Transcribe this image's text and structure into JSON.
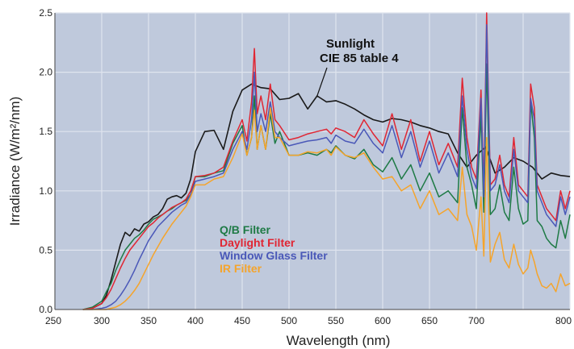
{
  "chart_data": {
    "type": "line",
    "title": "",
    "xlabel": "Wavelength (nm)",
    "ylabel": "Irradiance (W/m²/nm)",
    "xlim": [
      250,
      800
    ],
    "ylim": [
      0,
      2.5
    ],
    "x_ticks": [
      "250",
      "300",
      "350",
      "400",
      "450",
      "500",
      "550",
      "600",
      "650",
      "700",
      "800"
    ],
    "x_tick_values": [
      250,
      300,
      350,
      400,
      450,
      500,
      550,
      600,
      650,
      700,
      800
    ],
    "y_ticks": [
      "0.0",
      "0.5",
      "1.0",
      "1.5",
      "2.0",
      "2.5"
    ],
    "y_tick_values": [
      0,
      0.5,
      1.0,
      1.5,
      2.0,
      2.5
    ],
    "grid": true,
    "legend_position": "lower-left",
    "annotation": {
      "lines": [
        "Sunlight",
        "CIE 85 table 4"
      ],
      "target_x": 530,
      "target_y": 1.8
    },
    "series": [
      {
        "name": "Sunlight CIE 85 table 4",
        "color": "#1a1a1a",
        "x": [
          280,
          290,
          300,
          305,
          310,
          315,
          320,
          325,
          330,
          335,
          340,
          345,
          350,
          355,
          360,
          365,
          370,
          375,
          380,
          385,
          390,
          395,
          400,
          410,
          420,
          430,
          440,
          450,
          460,
          470,
          480,
          490,
          500,
          510,
          520,
          530,
          540,
          550,
          560,
          570,
          580,
          590,
          600,
          610,
          620,
          630,
          640,
          650,
          660,
          670,
          680,
          690,
          700,
          710,
          720,
          730,
          740,
          750,
          760,
          770,
          780,
          790,
          800
        ],
        "y": [
          0,
          0.01,
          0.05,
          0.12,
          0.25,
          0.4,
          0.55,
          0.65,
          0.62,
          0.68,
          0.66,
          0.72,
          0.74,
          0.78,
          0.8,
          0.85,
          0.93,
          0.95,
          0.96,
          0.94,
          0.98,
          1.1,
          1.33,
          1.5,
          1.51,
          1.35,
          1.67,
          1.85,
          1.9,
          1.87,
          1.86,
          1.77,
          1.78,
          1.82,
          1.69,
          1.8,
          1.75,
          1.76,
          1.73,
          1.69,
          1.64,
          1.6,
          1.58,
          1.61,
          1.6,
          1.58,
          1.55,
          1.53,
          1.5,
          1.48,
          1.32,
          1.2,
          1.3,
          1.37,
          1.15,
          1.2,
          1.28,
          1.25,
          1.2,
          1.1,
          1.15,
          1.13,
          1.12
        ]
      },
      {
        "name": "Q/B Filter",
        "color": "#1e7a45",
        "x": [
          280,
          290,
          300,
          305,
          310,
          315,
          320,
          325,
          330,
          335,
          340,
          345,
          350,
          355,
          360,
          365,
          370,
          375,
          380,
          385,
          390,
          395,
          400,
          410,
          420,
          430,
          440,
          450,
          455,
          460,
          463,
          466,
          470,
          475,
          480,
          485,
          490,
          500,
          510,
          520,
          530,
          540,
          545,
          550,
          560,
          570,
          580,
          590,
          600,
          610,
          620,
          630,
          640,
          650,
          660,
          670,
          680,
          685,
          690,
          695,
          700,
          705,
          708,
          711,
          715,
          720,
          725,
          730,
          735,
          740,
          745,
          750,
          755,
          758,
          762,
          765,
          770,
          775,
          780,
          785,
          790,
          795,
          800
        ],
        "y": [
          0,
          0.02,
          0.07,
          0.15,
          0.22,
          0.33,
          0.42,
          0.5,
          0.55,
          0.6,
          0.63,
          0.67,
          0.72,
          0.76,
          0.78,
          0.8,
          0.83,
          0.85,
          0.88,
          0.9,
          0.92,
          0.97,
          1.12,
          1.12,
          1.15,
          1.17,
          1.4,
          1.55,
          1.3,
          1.45,
          1.8,
          1.35,
          1.55,
          1.35,
          1.65,
          1.4,
          1.5,
          1.3,
          1.3,
          1.32,
          1.3,
          1.35,
          1.32,
          1.38,
          1.3,
          1.27,
          1.35,
          1.22,
          1.16,
          1.28,
          1.1,
          1.22,
          1.0,
          1.15,
          0.95,
          1.0,
          0.9,
          1.7,
          1.2,
          1.05,
          0.85,
          1.65,
          0.82,
          2.07,
          0.8,
          0.85,
          1.05,
          0.82,
          0.75,
          1.2,
          0.85,
          0.72,
          0.75,
          1.75,
          1.45,
          0.75,
          0.7,
          0.6,
          0.55,
          0.52,
          0.75,
          0.6,
          0.8
        ]
      },
      {
        "name": "Daylight Filter",
        "color": "#e02633",
        "x": [
          280,
          290,
          300,
          305,
          310,
          315,
          320,
          325,
          330,
          335,
          340,
          345,
          350,
          355,
          360,
          365,
          370,
          375,
          380,
          385,
          390,
          395,
          400,
          410,
          420,
          430,
          440,
          450,
          455,
          460,
          463,
          466,
          470,
          475,
          480,
          485,
          490,
          500,
          510,
          520,
          530,
          540,
          545,
          550,
          560,
          570,
          580,
          590,
          600,
          610,
          620,
          630,
          640,
          650,
          660,
          670,
          680,
          685,
          690,
          695,
          700,
          705,
          708,
          711,
          715,
          720,
          725,
          730,
          735,
          740,
          745,
          750,
          755,
          758,
          762,
          765,
          770,
          775,
          780,
          785,
          790,
          795,
          800
        ],
        "y": [
          0,
          0.01,
          0.05,
          0.1,
          0.17,
          0.26,
          0.35,
          0.43,
          0.5,
          0.55,
          0.6,
          0.65,
          0.7,
          0.73,
          0.77,
          0.8,
          0.83,
          0.86,
          0.88,
          0.9,
          0.93,
          1.0,
          1.12,
          1.13,
          1.15,
          1.2,
          1.42,
          1.6,
          1.42,
          1.75,
          2.2,
          1.65,
          1.8,
          1.6,
          1.9,
          1.6,
          1.55,
          1.43,
          1.45,
          1.48,
          1.5,
          1.52,
          1.48,
          1.53,
          1.5,
          1.45,
          1.6,
          1.48,
          1.38,
          1.65,
          1.35,
          1.6,
          1.25,
          1.5,
          1.22,
          1.4,
          1.2,
          1.95,
          1.45,
          1.2,
          1.1,
          1.85,
          1.0,
          2.5,
          1.05,
          1.1,
          1.3,
          1.05,
          0.95,
          1.45,
          1.05,
          1.0,
          0.95,
          1.9,
          1.7,
          1.05,
          0.95,
          0.85,
          0.8,
          0.75,
          1.0,
          0.85,
          1.0
        ]
      },
      {
        "name": "Window Glass Filter",
        "color": "#4a58b8",
        "x": [
          280,
          290,
          300,
          305,
          310,
          315,
          320,
          325,
          330,
          335,
          340,
          345,
          350,
          355,
          360,
          365,
          370,
          375,
          380,
          385,
          390,
          395,
          400,
          410,
          420,
          430,
          440,
          450,
          455,
          460,
          463,
          466,
          470,
          475,
          480,
          485,
          490,
          500,
          510,
          520,
          530,
          540,
          545,
          550,
          560,
          570,
          580,
          590,
          600,
          610,
          620,
          630,
          640,
          650,
          660,
          670,
          680,
          685,
          690,
          695,
          700,
          705,
          708,
          711,
          715,
          720,
          725,
          730,
          735,
          740,
          745,
          750,
          755,
          758,
          762,
          765,
          770,
          775,
          780,
          785,
          790,
          795,
          800
        ],
        "y": [
          0,
          0,
          0.01,
          0.02,
          0.04,
          0.07,
          0.12,
          0.18,
          0.25,
          0.33,
          0.42,
          0.5,
          0.58,
          0.64,
          0.7,
          0.74,
          0.78,
          0.82,
          0.85,
          0.88,
          0.9,
          0.97,
          1.08,
          1.1,
          1.12,
          1.15,
          1.35,
          1.5,
          1.35,
          1.6,
          2.0,
          1.5,
          1.65,
          1.5,
          1.75,
          1.5,
          1.45,
          1.38,
          1.4,
          1.42,
          1.43,
          1.45,
          1.4,
          1.47,
          1.42,
          1.4,
          1.52,
          1.4,
          1.32,
          1.55,
          1.28,
          1.5,
          1.2,
          1.42,
          1.15,
          1.32,
          1.12,
          1.8,
          1.35,
          1.12,
          1.02,
          1.78,
          0.95,
          2.4,
          1.0,
          1.05,
          1.22,
          1.0,
          0.9,
          1.35,
          1.0,
          0.95,
          0.9,
          1.78,
          1.6,
          1.0,
          0.9,
          0.8,
          0.75,
          0.7,
          0.95,
          0.8,
          0.95
        ]
      },
      {
        "name": "IR Filter",
        "color": "#f5a42b",
        "x": [
          280,
          290,
          300,
          305,
          310,
          315,
          320,
          325,
          330,
          335,
          340,
          345,
          350,
          355,
          360,
          365,
          370,
          375,
          380,
          385,
          390,
          395,
          400,
          410,
          420,
          430,
          440,
          450,
          455,
          460,
          463,
          466,
          470,
          475,
          480,
          485,
          490,
          500,
          510,
          520,
          530,
          540,
          545,
          550,
          560,
          570,
          580,
          590,
          600,
          610,
          620,
          630,
          640,
          650,
          660,
          670,
          680,
          685,
          690,
          695,
          700,
          705,
          708,
          711,
          715,
          720,
          725,
          730,
          735,
          740,
          745,
          750,
          755,
          758,
          762,
          765,
          770,
          775,
          780,
          785,
          790,
          795,
          800
        ],
        "y": [
          0,
          0,
          0,
          0,
          0.01,
          0.02,
          0.04,
          0.07,
          0.11,
          0.16,
          0.22,
          0.3,
          0.38,
          0.46,
          0.53,
          0.6,
          0.66,
          0.72,
          0.77,
          0.82,
          0.87,
          0.95,
          1.05,
          1.05,
          1.1,
          1.12,
          1.28,
          1.48,
          1.3,
          1.45,
          1.68,
          1.35,
          1.55,
          1.35,
          1.7,
          1.45,
          1.45,
          1.3,
          1.3,
          1.33,
          1.32,
          1.35,
          1.3,
          1.37,
          1.3,
          1.28,
          1.32,
          1.2,
          1.1,
          1.12,
          1.0,
          1.05,
          0.85,
          1.0,
          0.8,
          0.85,
          0.75,
          1.2,
          0.8,
          0.7,
          0.5,
          0.95,
          0.45,
          1.45,
          0.4,
          0.55,
          0.65,
          0.42,
          0.35,
          0.55,
          0.38,
          0.3,
          0.35,
          0.5,
          0.4,
          0.3,
          0.2,
          0.18,
          0.22,
          0.15,
          0.3,
          0.2,
          0.22
        ]
      }
    ]
  }
}
